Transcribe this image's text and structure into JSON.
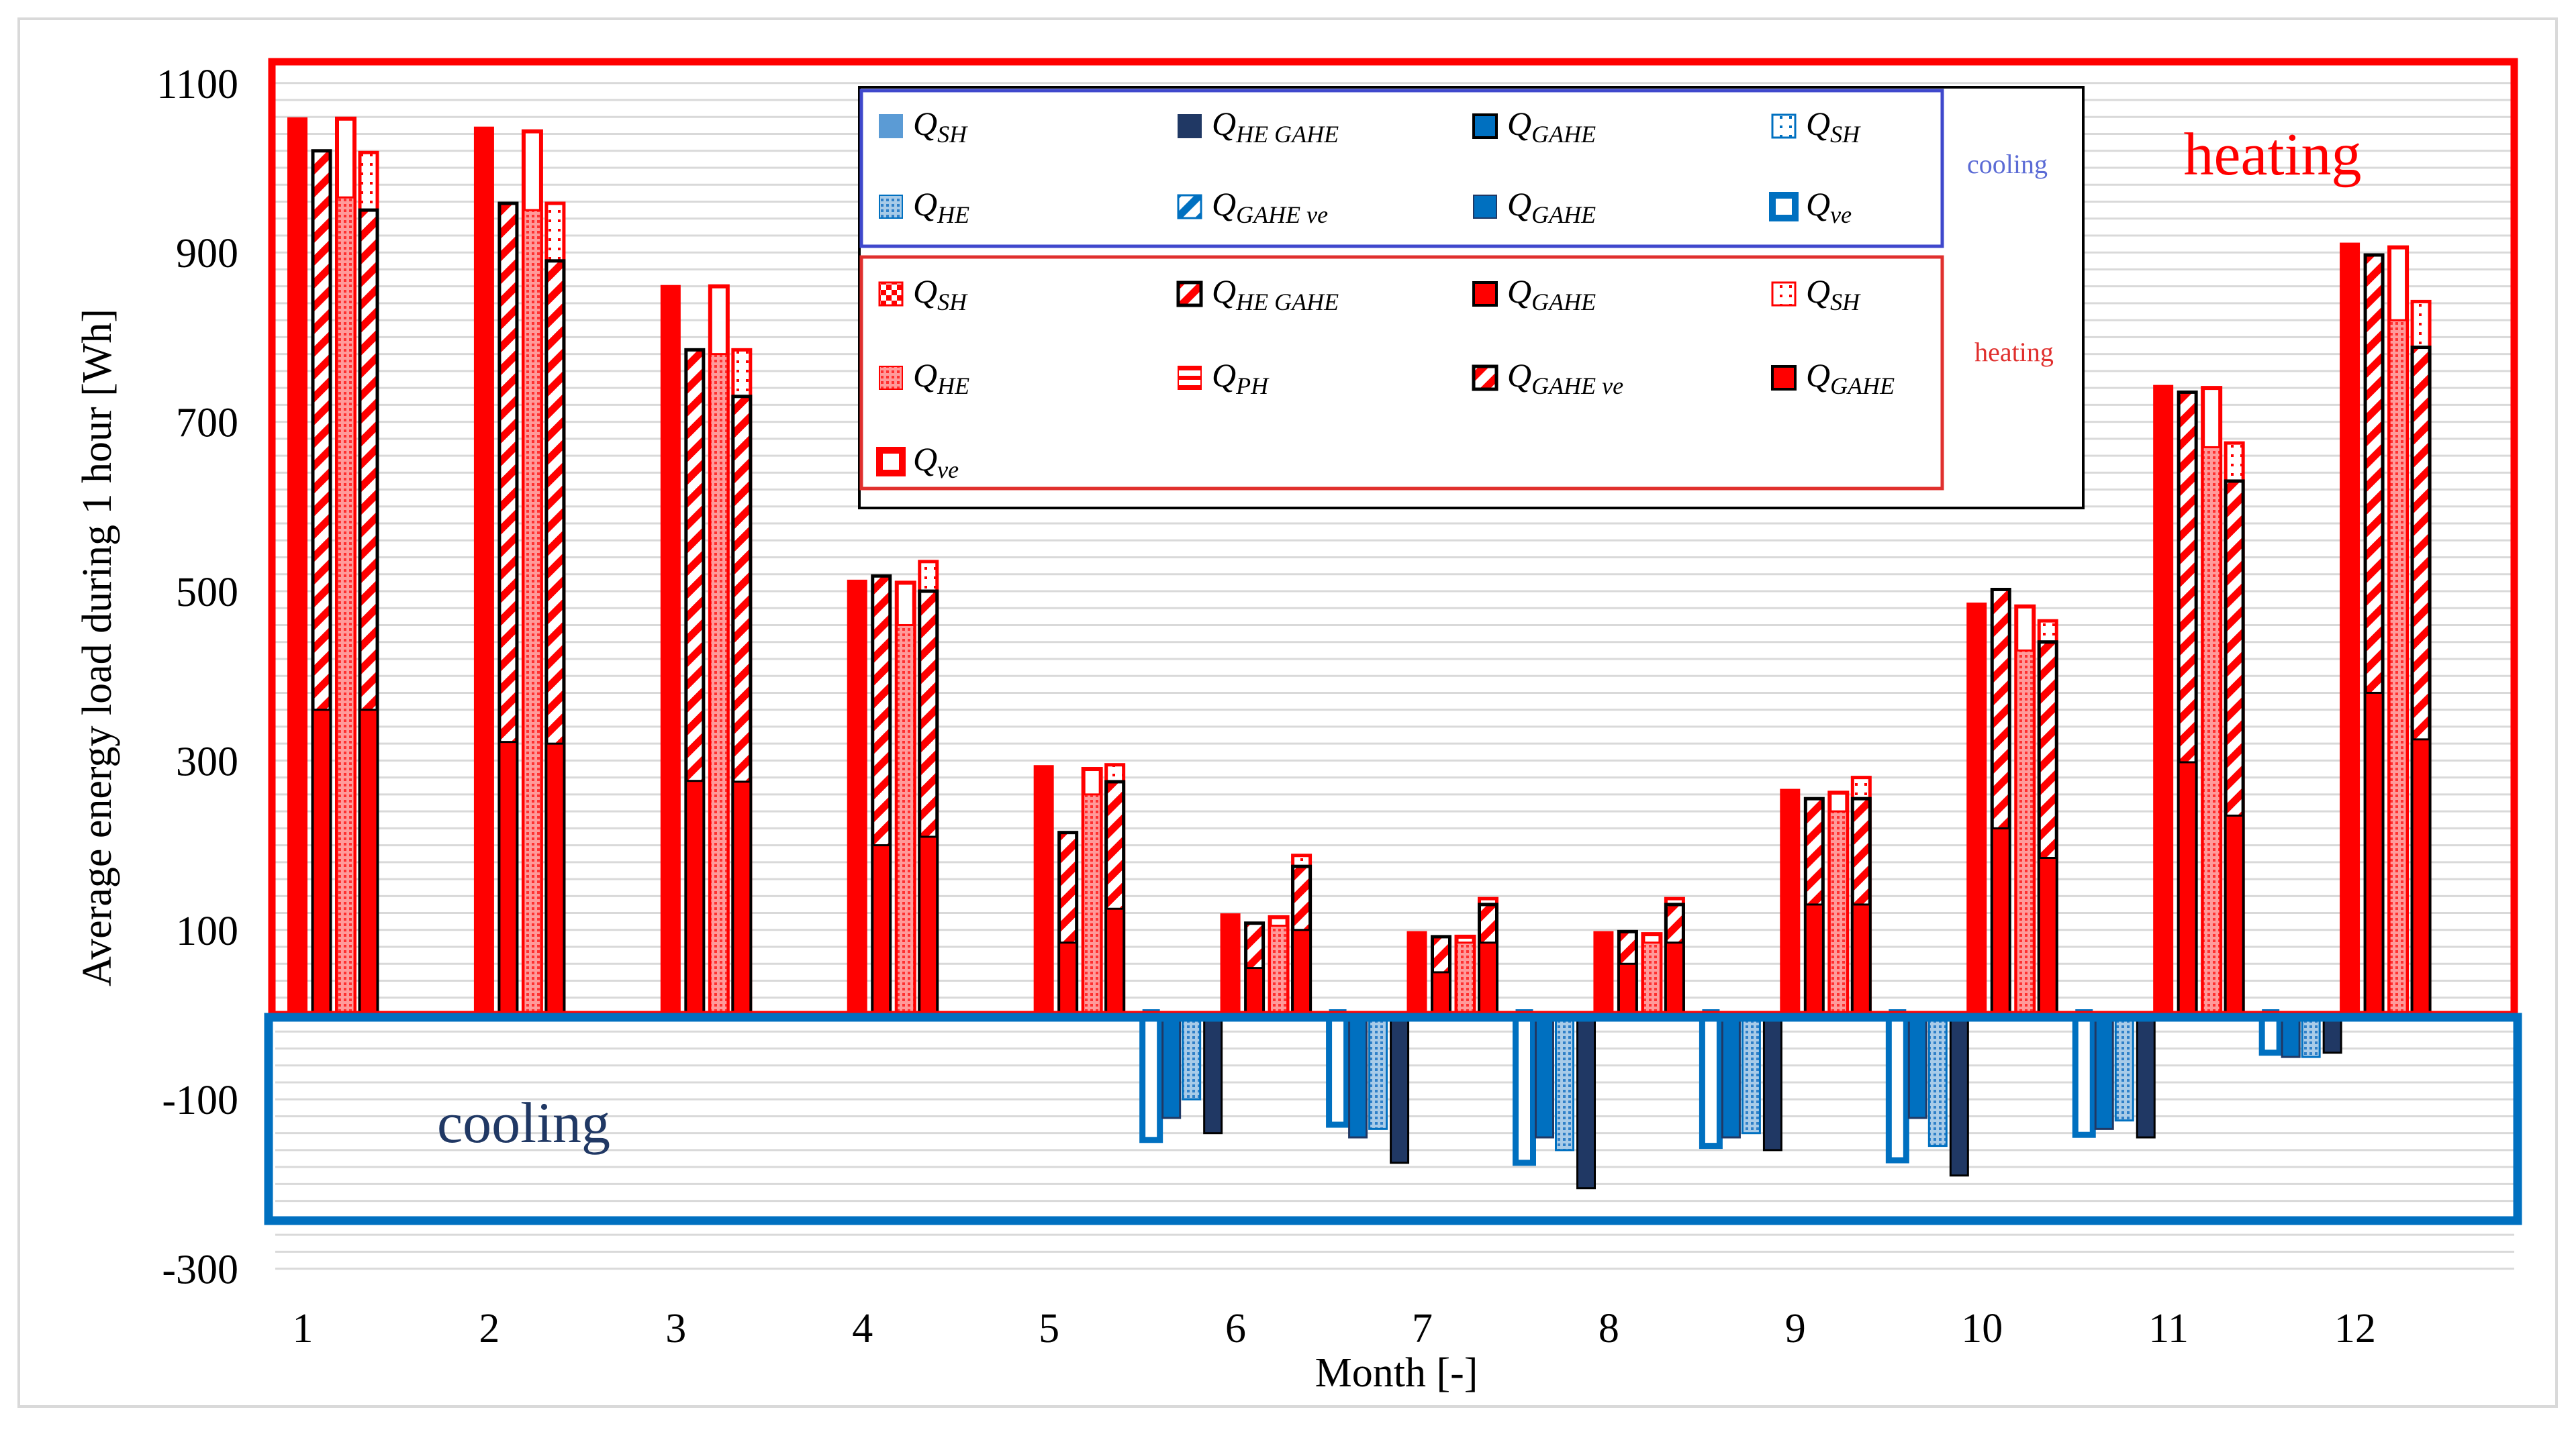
{
  "chart_data": {
    "type": "bar",
    "title": "",
    "xlabel": "Month [-]",
    "ylabel": "Average energy load during 1 hour [Wh]",
    "ylim": [
      -300,
      1100
    ],
    "yticks": [
      1100,
      900,
      700,
      500,
      300,
      100,
      -100,
      -300
    ],
    "grid": true,
    "categories": [
      "1",
      "2",
      "3",
      "4",
      "5",
      "6",
      "7",
      "8",
      "9",
      "10",
      "11",
      "12"
    ],
    "region_labels": {
      "heating": "heating",
      "cooling": "cooling"
    },
    "colors": {
      "heating": "#ff0000",
      "cooling": "#0070c0",
      "cooling_dark": "#203864",
      "cooling_light": "#5b9bd5",
      "cooling_legend_border": "#3f48cc",
      "heating_legend_border": "#e0302e",
      "cooling_legend_label": "#5b6bd5"
    },
    "heating_series": [
      {
        "name": "Q_ve",
        "values": [
          1058,
          1047,
          860,
          512,
          293,
          118,
          97,
          97,
          265,
          485,
          742,
          910
        ]
      },
      {
        "name": "Q_GAHE",
        "values": [
          360,
          322,
          276,
          200,
          85,
          55,
          50,
          60,
          130,
          220,
          298,
          380
        ]
      },
      {
        "name": "Q_GAHE ve",
        "values": [
          1020,
          958,
          785,
          518,
          215,
          108,
          92,
          98,
          255,
          502,
          735,
          897
        ]
      },
      {
        "name": "Q_HE",
        "values": [
          965,
          950,
          780,
          460,
          260,
          105,
          85,
          85,
          240,
          430,
          670,
          820
        ]
      },
      {
        "name": "Q_SH",
        "values": [
          1058,
          1043,
          860,
          510,
          290,
          115,
          92,
          95,
          262,
          482,
          740,
          906
        ]
      },
      {
        "name": "Q_GAHE",
        "values": [
          360,
          320,
          275,
          210,
          125,
          100,
          85,
          85,
          130,
          185,
          235,
          325
        ]
      },
      {
        "name": "Q_HE GAHE",
        "values": [
          950,
          890,
          730,
          500,
          275,
          175,
          130,
          130,
          255,
          440,
          630,
          788
        ]
      },
      {
        "name": "Q_SH",
        "values": [
          1018,
          958,
          785,
          535,
          295,
          188,
          137,
          137,
          280,
          465,
          675,
          842
        ]
      }
    ],
    "cooling_series": [
      {
        "name": "Q_ve",
        "values": [
          0,
          0,
          0,
          0,
          -148,
          -130,
          -175,
          -155,
          -172,
          -142,
          -45,
          0
        ]
      },
      {
        "name": "Q_HE GAHE",
        "values": [
          0,
          0,
          0,
          0,
          -122,
          -145,
          -145,
          -145,
          -122,
          -135,
          -50,
          0
        ]
      },
      {
        "name": "Q_HE",
        "values": [
          0,
          0,
          0,
          0,
          -100,
          -135,
          -160,
          -140,
          -155,
          -125,
          -50,
          0
        ]
      },
      {
        "name": "Q_GAHE",
        "values": [
          0,
          0,
          0,
          0,
          -140,
          -175,
          -205,
          -160,
          -190,
          -145,
          -45,
          0
        ]
      }
    ],
    "legend": {
      "cooling_title": "cooling",
      "heating_title": "heating",
      "cooling_items": [
        {
          "sym": "Q",
          "sub": "SH",
          "style": "cl-solid"
        },
        {
          "sym": "Q",
          "sub": "HE GAHE",
          "style": "cl-dark"
        },
        {
          "sym": "Q",
          "sub": "GAHE",
          "style": "cl-blue-outline"
        },
        {
          "sym": "Q",
          "sub": "SH",
          "style": "cl-dots"
        },
        {
          "sym": "Q",
          "sub": "HE",
          "style": "cl-dense"
        },
        {
          "sym": "Q",
          "sub": "GAHE ve",
          "style": "cl-hatch"
        },
        {
          "sym": "Q",
          "sub": "GAHE",
          "style": "cl-blue"
        },
        {
          "sym": "Q",
          "sub": "ve",
          "style": "cl-ve"
        }
      ],
      "heating_items": [
        {
          "sym": "Q",
          "sub": "SH",
          "style": "ht-check"
        },
        {
          "sym": "Q",
          "sub": "HE GAHE",
          "style": "ht-hatch-black"
        },
        {
          "sym": "Q",
          "sub": "GAHE",
          "style": "ht-solid-black"
        },
        {
          "sym": "Q",
          "sub": "SH",
          "style": "ht-dots"
        },
        {
          "sym": "Q",
          "sub": "HE",
          "style": "ht-dense"
        },
        {
          "sym": "Q",
          "sub": "PH",
          "style": "ht-lines"
        },
        {
          "sym": "Q",
          "sub": "GAHE ve",
          "style": "ht-hatch-black"
        },
        {
          "sym": "Q",
          "sub": "GAHE",
          "style": "ht-solid-black"
        },
        {
          "sym": "Q",
          "sub": "ve",
          "style": "ht-ve"
        }
      ]
    }
  }
}
